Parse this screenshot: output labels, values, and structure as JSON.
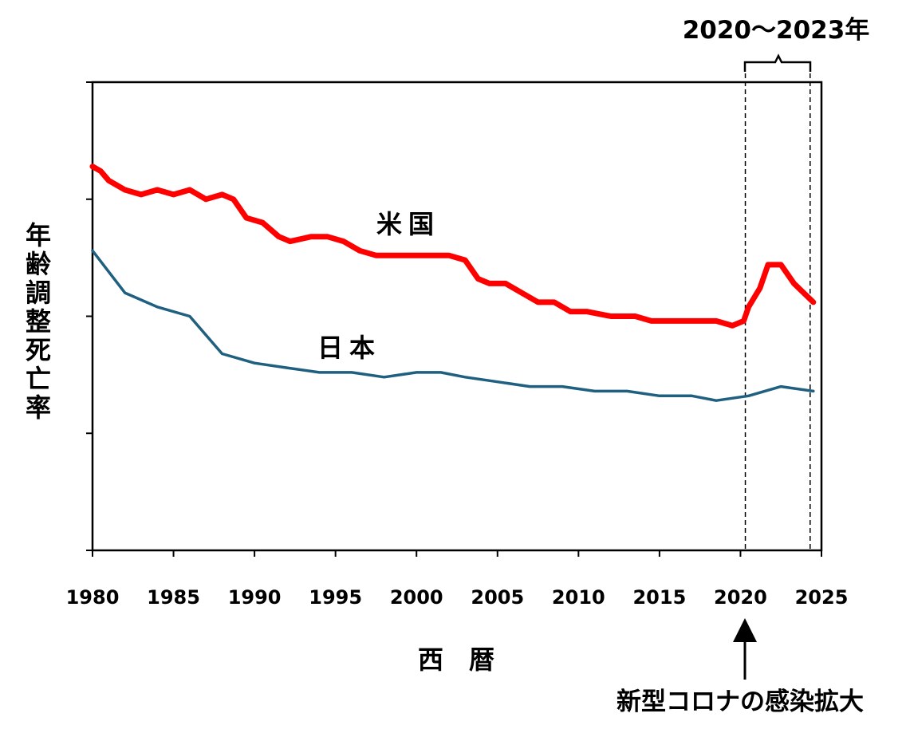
{
  "chart_data": {
    "type": "line",
    "xlabel": "西　暦",
    "ylabel": "年齢調整死亡率",
    "xlim": [
      1980,
      2025
    ],
    "x_ticks": [
      1980,
      1985,
      1990,
      1995,
      2000,
      2005,
      2010,
      2015,
      2020,
      2025
    ],
    "y_tick_count": 5,
    "grid": false,
    "legend": "inline labels",
    "series": [
      {
        "name": "米国",
        "color": "#ff0000",
        "points": [
          [
            1980.0,
            0.82
          ],
          [
            1980.5,
            0.81
          ],
          [
            1981.0,
            0.79
          ],
          [
            1982.0,
            0.77
          ],
          [
            1983.0,
            0.76
          ],
          [
            1984.0,
            0.77
          ],
          [
            1985.0,
            0.76
          ],
          [
            1986.0,
            0.77
          ],
          [
            1987.0,
            0.75
          ],
          [
            1988.0,
            0.76
          ],
          [
            1988.7,
            0.75
          ],
          [
            1989.5,
            0.71
          ],
          [
            1990.5,
            0.7
          ],
          [
            1991.5,
            0.67
          ],
          [
            1992.2,
            0.66
          ],
          [
            1993.5,
            0.67
          ],
          [
            1994.5,
            0.67
          ],
          [
            1995.5,
            0.66
          ],
          [
            1996.5,
            0.64
          ],
          [
            1997.5,
            0.63
          ],
          [
            1999.0,
            0.63
          ],
          [
            2000.5,
            0.63
          ],
          [
            2002.0,
            0.63
          ],
          [
            2003.0,
            0.62
          ],
          [
            2003.8,
            0.58
          ],
          [
            2004.5,
            0.57
          ],
          [
            2005.5,
            0.57
          ],
          [
            2006.5,
            0.55
          ],
          [
            2007.5,
            0.53
          ],
          [
            2008.5,
            0.53
          ],
          [
            2009.5,
            0.51
          ],
          [
            2010.5,
            0.51
          ],
          [
            2012.0,
            0.5
          ],
          [
            2013.5,
            0.5
          ],
          [
            2014.5,
            0.49
          ],
          [
            2015.5,
            0.49
          ],
          [
            2017.0,
            0.49
          ],
          [
            2018.5,
            0.49
          ],
          [
            2019.5,
            0.48
          ],
          [
            2020.2,
            0.49
          ],
          [
            2020.5,
            0.52
          ],
          [
            2021.2,
            0.56
          ],
          [
            2021.7,
            0.61
          ],
          [
            2022.5,
            0.61
          ],
          [
            2023.3,
            0.57
          ],
          [
            2024.5,
            0.53
          ]
        ]
      },
      {
        "name": "日本",
        "color": "#1f5f7f",
        "points": [
          [
            1980.0,
            0.64
          ],
          [
            1982.0,
            0.55
          ],
          [
            1984.0,
            0.52
          ],
          [
            1986.0,
            0.5
          ],
          [
            1988.0,
            0.42
          ],
          [
            1990.0,
            0.4
          ],
          [
            1992.0,
            0.39
          ],
          [
            1994.0,
            0.38
          ],
          [
            1996.0,
            0.38
          ],
          [
            1998.0,
            0.37
          ],
          [
            2000.0,
            0.38
          ],
          [
            2001.5,
            0.38
          ],
          [
            2003.0,
            0.37
          ],
          [
            2005.0,
            0.36
          ],
          [
            2007.0,
            0.35
          ],
          [
            2009.0,
            0.35
          ],
          [
            2011.0,
            0.34
          ],
          [
            2013.0,
            0.34
          ],
          [
            2015.0,
            0.33
          ],
          [
            2017.0,
            0.33
          ],
          [
            2018.5,
            0.32
          ],
          [
            2020.5,
            0.33
          ],
          [
            2022.5,
            0.35
          ],
          [
            2024.5,
            0.34
          ]
        ]
      }
    ],
    "annotations": {
      "period_label": "2020～2023年",
      "period_start": 2020.3,
      "period_end": 2024.3,
      "event_label": "新型コロナの感染拡大",
      "event_x": 2020.3
    }
  }
}
